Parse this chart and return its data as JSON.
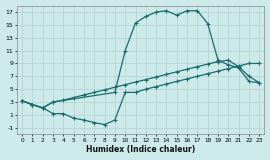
{
  "bg_color": "#cceaea",
  "grid_color": "#b8d4d4",
  "line_color": "#1a6b6b",
  "xlabel": "Humidex (Indice chaleur)",
  "xlim": [
    -0.5,
    23.5
  ],
  "ylim": [
    -2,
    18
  ],
  "xticks": [
    0,
    1,
    2,
    3,
    4,
    5,
    6,
    7,
    8,
    9,
    10,
    11,
    12,
    13,
    14,
    15,
    16,
    17,
    18,
    19,
    20,
    21,
    22,
    23
  ],
  "yticks": [
    -1,
    1,
    3,
    5,
    7,
    9,
    11,
    13,
    15,
    17
  ],
  "line_top_x": [
    0,
    1,
    2,
    3,
    9,
    10,
    11,
    12,
    13,
    14,
    15,
    16,
    17,
    18,
    19,
    20,
    21,
    22,
    23
  ],
  "line_top_y": [
    3.2,
    2.6,
    2.1,
    3.0,
    4.5,
    11.0,
    15.3,
    16.3,
    17.0,
    17.2,
    16.5,
    17.2,
    17.2,
    15.2,
    9.5,
    8.8,
    8.3,
    6.2,
    6.0
  ],
  "line_mid_x": [
    0,
    1,
    2,
    3,
    4,
    5,
    6,
    7,
    8,
    9,
    10,
    11,
    12,
    13,
    14,
    15,
    16,
    17,
    18,
    19,
    20,
    21,
    22,
    23
  ],
  "line_mid_y": [
    3.2,
    2.6,
    2.1,
    3.0,
    3.3,
    3.7,
    4.1,
    4.5,
    4.9,
    5.3,
    5.7,
    6.1,
    6.5,
    6.9,
    7.3,
    7.7,
    8.1,
    8.5,
    8.9,
    9.3,
    9.5,
    8.5,
    7.0,
    6.0
  ],
  "line_bot_x": [
    0,
    1,
    2,
    3,
    4,
    5,
    6,
    7,
    8,
    9,
    10,
    11,
    12,
    13,
    14,
    15,
    16,
    17,
    18,
    19,
    20,
    21,
    22,
    23
  ],
  "line_bot_y": [
    3.2,
    2.6,
    2.1,
    1.2,
    1.2,
    0.5,
    0.2,
    -0.2,
    -0.5,
    0.2,
    4.5,
    4.5,
    5.0,
    5.4,
    5.8,
    6.2,
    6.6,
    7.0,
    7.4,
    7.8,
    8.2,
    8.6,
    9.0,
    9.0
  ]
}
